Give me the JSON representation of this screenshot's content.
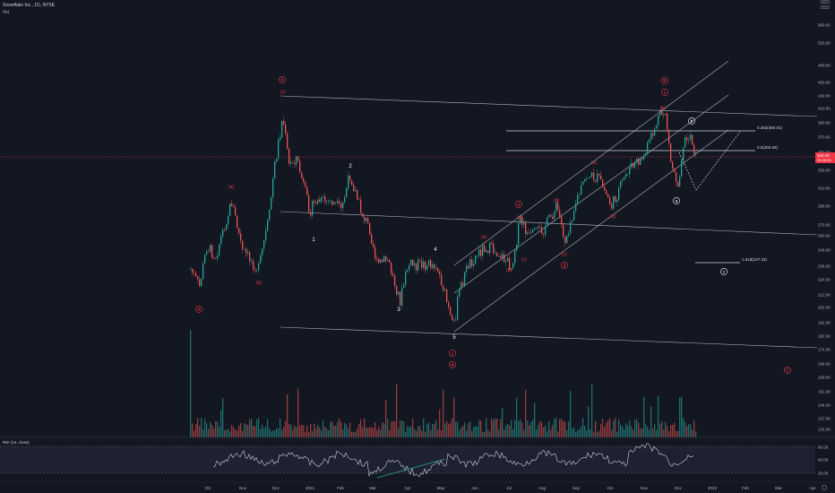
{
  "legend": {
    "symbol_line": "Snowflake Inc., 1D, NYSE",
    "vol_label": "Vol"
  },
  "topright": {
    "line1": "USD",
    "line2": "USD"
  },
  "price_axis": {
    "labels": [
      "560.00",
      "520.00",
      "480.00",
      "450.00",
      "430.00",
      "410.00",
      "390.00",
      "370.00",
      "350.00",
      "330.00",
      "310.00",
      "290.00",
      "270.00",
      "260.00",
      "246.00",
      "236.00",
      "224.00",
      "212.00",
      "202.00",
      "192.00",
      "182.00",
      "174.00",
      "166.00",
      "158.00",
      "151.00",
      "144.00",
      "137.00",
      "131.00",
      "125.00"
    ],
    "current_price": "340.00",
    "current_price_sub": "05:05:33"
  },
  "time_axis": {
    "labels": [
      "Oct",
      "Nov",
      "Dec",
      "2021",
      "Feb",
      "Mar",
      "Apr",
      "May",
      "Jun",
      "Jul",
      "Aug",
      "Sep",
      "Oct",
      "Nov",
      "Dec",
      "2022",
      "Feb",
      "Mar",
      "Apr"
    ]
  },
  "rsi": {
    "label": "RSI (14, close)",
    "axis": [
      "80.00",
      "40.00",
      "20.00"
    ]
  },
  "wave_labels": {
    "A_circle": "A",
    "b_circle": "b",
    "c_top": "c",
    "c_left": "c",
    "a_paren": "(a)",
    "b_paren": "(b)",
    "c_paren": "(c)",
    "d_paren": "(d)",
    "e_paren": "(e)",
    "n1": "1",
    "n2": "2",
    "n3": "3",
    "n4": "4",
    "n5": "5",
    "C_circle": "C",
    "a_bottom": "a",
    "B_circle": "B"
  },
  "fib": {
    "level1": "0.382(380.01)",
    "level2": "0.5(355.68)",
    "level3": "1.618(237.32)"
  },
  "colors": {
    "background": "#131722",
    "up": "#26a69a",
    "down": "#ef5350",
    "wave_red": "#f23645",
    "current_price": "#f23645"
  },
  "icons": {
    "settings": "gear-icon"
  }
}
